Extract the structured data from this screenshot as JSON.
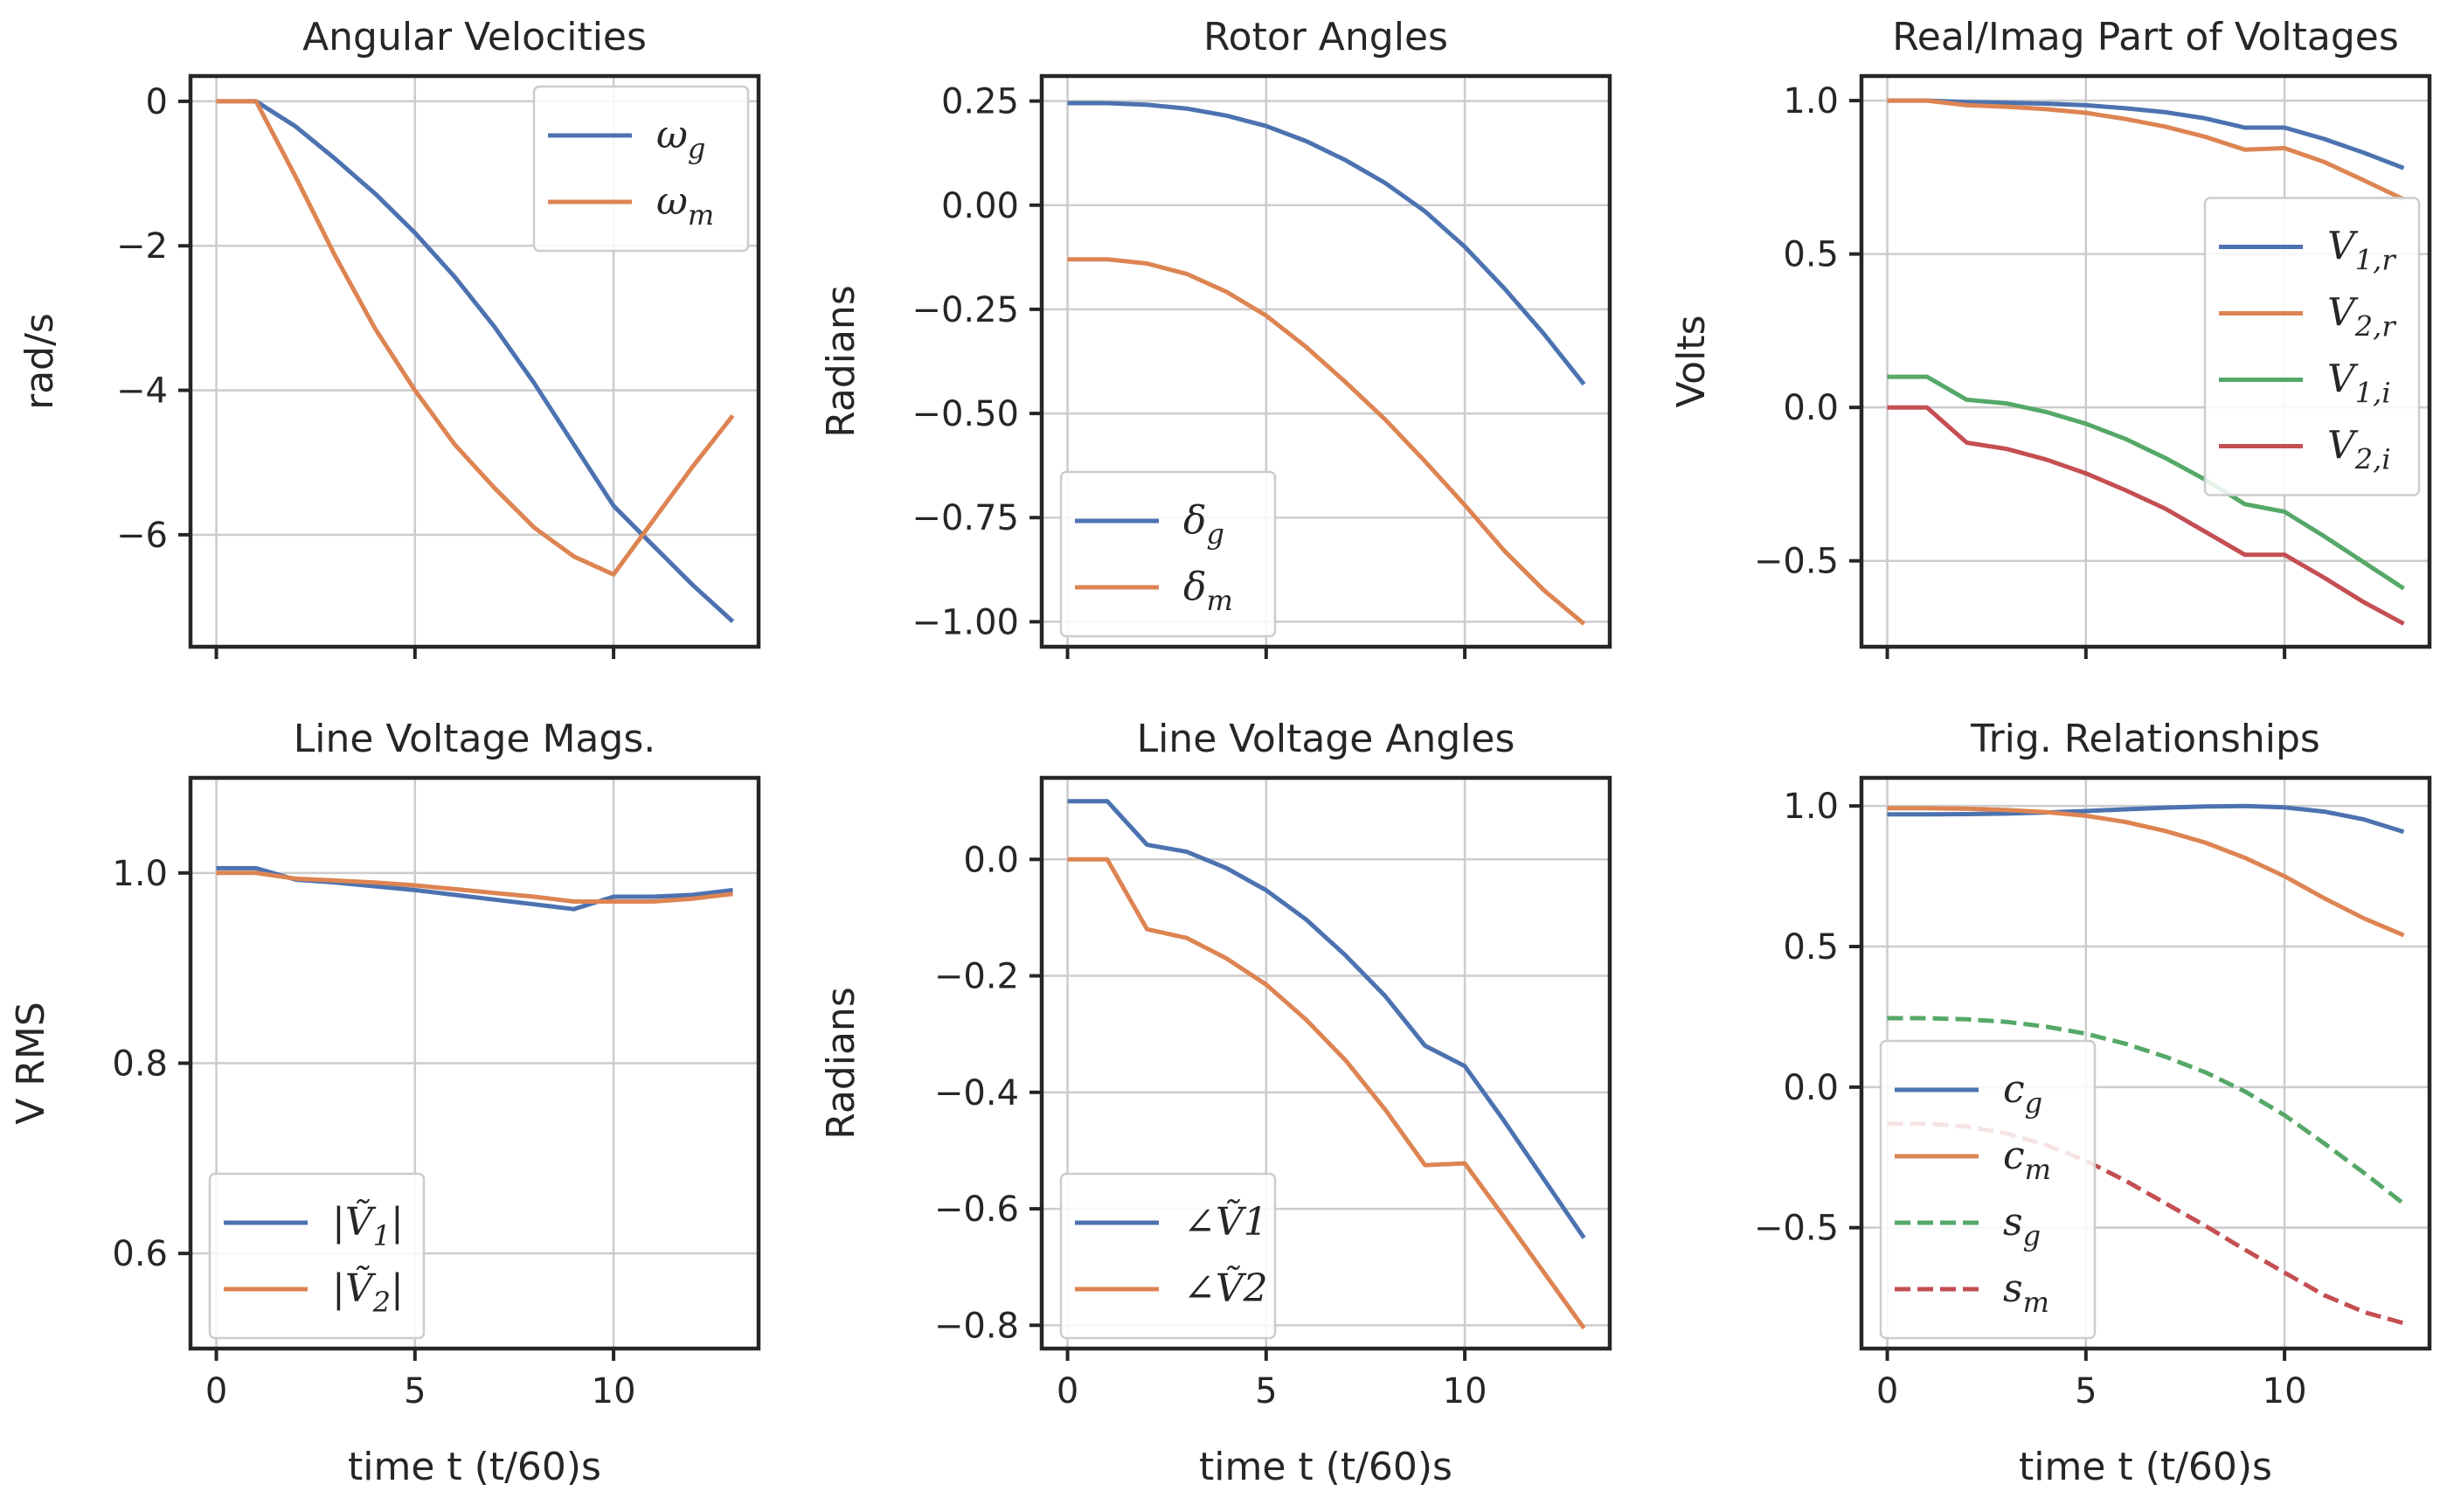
{
  "chart_data": [
    {
      "type": "line",
      "title": "Angular Velocities",
      "xlabel": "",
      "ylabel": "rad/s",
      "xlim": [
        -0.65,
        13.65
      ],
      "ylim": [
        -7.55,
        0.35
      ],
      "xticks": [
        0,
        5,
        10
      ],
      "xticklabels": [
        "",
        "",
        ""
      ],
      "yticks": [
        0,
        -2,
        -4,
        -6
      ],
      "yticklabels": [
        "0",
        "−2",
        "−4",
        "−6"
      ],
      "legend": "top-right",
      "series": [
        {
          "name": "ωg",
          "color": "#4c72b0",
          "dash": "solid",
          "x": [
            0,
            1,
            2,
            3,
            4,
            5,
            6,
            7,
            8,
            9,
            10,
            11,
            12,
            13
          ],
          "y": [
            0,
            0,
            -0.35,
            -0.8,
            -1.28,
            -1.82,
            -2.43,
            -3.12,
            -3.9,
            -4.75,
            -5.6,
            -6.15,
            -6.7,
            -7.2
          ]
        },
        {
          "name": "ωm",
          "color": "#dd8452",
          "dash": "solid",
          "x": [
            0,
            1,
            2,
            3,
            4,
            5,
            6,
            7,
            8,
            9,
            10,
            11,
            12,
            13
          ],
          "y": [
            0,
            0,
            -1.05,
            -2.15,
            -3.15,
            -4.0,
            -4.75,
            -5.35,
            -5.9,
            -6.3,
            -6.55,
            -5.8,
            -5.05,
            -4.35
          ]
        }
      ]
    },
    {
      "type": "line",
      "title": "Rotor Angles",
      "xlabel": "",
      "ylabel": "Radians",
      "xlim": [
        -0.65,
        13.65
      ],
      "ylim": [
        -1.06,
        0.31
      ],
      "xticks": [
        0,
        5,
        10
      ],
      "xticklabels": [
        "",
        "",
        ""
      ],
      "yticks": [
        0.25,
        0.0,
        -0.25,
        -0.5,
        -0.75,
        -1.0
      ],
      "yticklabels": [
        "0.25",
        "0.00",
        "−0.25",
        "−0.50",
        "−0.75",
        "−1.00"
      ],
      "legend": "bottom-left",
      "series": [
        {
          "name": "δg",
          "color": "#4c72b0",
          "dash": "solid",
          "x": [
            0,
            1,
            2,
            3,
            4,
            5,
            6,
            7,
            8,
            9,
            10,
            11,
            12,
            13
          ],
          "y": [
            0.245,
            0.245,
            0.241,
            0.232,
            0.215,
            0.19,
            0.154,
            0.108,
            0.053,
            -0.015,
            -0.1,
            -0.2,
            -0.31,
            -0.43
          ]
        },
        {
          "name": "δm",
          "color": "#dd8452",
          "dash": "solid",
          "x": [
            0,
            1,
            2,
            3,
            4,
            5,
            6,
            7,
            8,
            9,
            10,
            11,
            12,
            13
          ],
          "y": [
            -0.13,
            -0.13,
            -0.14,
            -0.165,
            -0.208,
            -0.265,
            -0.34,
            -0.425,
            -0.515,
            -0.615,
            -0.72,
            -0.83,
            -0.925,
            -1.005
          ]
        }
      ]
    },
    {
      "type": "line",
      "title": "Real/Imag Part of Voltages",
      "xlabel": "",
      "ylabel": "Volts",
      "xlim": [
        -0.65,
        13.65
      ],
      "ylim": [
        -0.78,
        1.08
      ],
      "xticks": [
        0,
        5,
        10
      ],
      "xticklabels": [
        "",
        "",
        ""
      ],
      "yticks": [
        1.0,
        0.5,
        0.0,
        -0.5
      ],
      "yticklabels": [
        "1.0",
        "0.5",
        "0.0",
        "−0.5"
      ],
      "legend": "right",
      "series": [
        {
          "name": "V1,r",
          "color": "#4c72b0",
          "dash": "solid",
          "x": [
            0,
            1,
            2,
            3,
            4,
            5,
            6,
            7,
            8,
            9,
            10,
            11,
            12,
            13
          ],
          "y": [
            1.0,
            1.0,
            0.995,
            0.993,
            0.99,
            0.985,
            0.975,
            0.962,
            0.942,
            0.912,
            0.912,
            0.875,
            0.83,
            0.78
          ]
        },
        {
          "name": "V2,r",
          "color": "#dd8452",
          "dash": "solid",
          "x": [
            0,
            1,
            2,
            3,
            4,
            5,
            6,
            7,
            8,
            9,
            10,
            11,
            12,
            13
          ],
          "y": [
            1.0,
            1.0,
            0.985,
            0.98,
            0.972,
            0.96,
            0.94,
            0.915,
            0.882,
            0.84,
            0.845,
            0.8,
            0.74,
            0.678
          ]
        },
        {
          "name": "V1,i",
          "color": "#55a868",
          "dash": "solid",
          "x": [
            0,
            1,
            2,
            3,
            4,
            5,
            6,
            7,
            8,
            9,
            10,
            11,
            12,
            13
          ],
          "y": [
            0.1,
            0.1,
            0.025,
            0.013,
            -0.015,
            -0.053,
            -0.103,
            -0.165,
            -0.235,
            -0.315,
            -0.34,
            -0.42,
            -0.505,
            -0.59
          ]
        },
        {
          "name": "V2,i",
          "color": "#c44e52",
          "dash": "solid",
          "x": [
            0,
            1,
            2,
            3,
            4,
            5,
            6,
            7,
            8,
            9,
            10,
            11,
            12,
            13
          ],
          "y": [
            0,
            0,
            -0.115,
            -0.135,
            -0.17,
            -0.215,
            -0.27,
            -0.33,
            -0.405,
            -0.48,
            -0.48,
            -0.555,
            -0.635,
            -0.705
          ]
        }
      ]
    },
    {
      "type": "line",
      "title": "Line Voltage Mags.",
      "xlabel": "time t (t/60)s",
      "ylabel": "V RMS",
      "xlim": [
        -0.65,
        13.65
      ],
      "ylim": [
        0.5,
        1.1
      ],
      "xticks": [
        0,
        5,
        10
      ],
      "xticklabels": [
        "0",
        "5",
        "10"
      ],
      "yticks": [
        1.0,
        0.8,
        0.6
      ],
      "yticklabels": [
        "1.0",
        "0.8",
        "0.6"
      ],
      "legend": "bottom-left",
      "series": [
        {
          "name": "|Ṽ1|",
          "color": "#4c72b0",
          "dash": "solid",
          "x": [
            0,
            1,
            2,
            3,
            4,
            5,
            6,
            7,
            8,
            9,
            10,
            11,
            12,
            13
          ],
          "y": [
            1.005,
            1.005,
            0.993,
            0.99,
            0.986,
            0.982,
            0.977,
            0.972,
            0.967,
            0.962,
            0.975,
            0.975,
            0.977,
            0.982
          ]
        },
        {
          "name": "|Ṽ2|",
          "color": "#dd8452",
          "dash": "solid",
          "x": [
            0,
            1,
            2,
            3,
            4,
            5,
            6,
            7,
            8,
            9,
            10,
            11,
            12,
            13
          ],
          "y": [
            1.0,
            1.0,
            0.994,
            0.992,
            0.99,
            0.987,
            0.983,
            0.979,
            0.975,
            0.97,
            0.97,
            0.97,
            0.973,
            0.978
          ]
        }
      ]
    },
    {
      "type": "line",
      "title": "Line Voltage Angles",
      "xlabel": "time t (t/60)s",
      "ylabel": "Radians",
      "xlim": [
        -0.65,
        13.65
      ],
      "ylim": [
        -0.84,
        0.14
      ],
      "xticks": [
        0,
        5,
        10
      ],
      "xticklabels": [
        "0",
        "5",
        "10"
      ],
      "yticks": [
        0.0,
        -0.2,
        -0.4,
        -0.6,
        -0.8
      ],
      "yticklabels": [
        "0.0",
        "−0.2",
        "−0.4",
        "−0.6",
        "−0.8"
      ],
      "legend": "bottom-left",
      "series": [
        {
          "name": "∠Ṽ1",
          "color": "#4c72b0",
          "dash": "solid",
          "x": [
            0,
            1,
            2,
            3,
            4,
            5,
            6,
            7,
            8,
            9,
            10,
            11,
            12,
            13
          ],
          "y": [
            0.1,
            0.1,
            0.025,
            0.013,
            -0.015,
            -0.053,
            -0.103,
            -0.165,
            -0.235,
            -0.32,
            -0.355,
            -0.45,
            -0.55,
            -0.65
          ]
        },
        {
          "name": "∠Ṽ2",
          "color": "#dd8452",
          "dash": "solid",
          "x": [
            0,
            1,
            2,
            3,
            4,
            5,
            6,
            7,
            8,
            9,
            10,
            11,
            12,
            13
          ],
          "y": [
            0,
            0,
            -0.12,
            -0.135,
            -0.17,
            -0.215,
            -0.275,
            -0.345,
            -0.43,
            -0.525,
            -0.522,
            -0.615,
            -0.71,
            -0.805
          ]
        }
      ]
    },
    {
      "type": "line",
      "title": "Trig. Relationships",
      "xlabel": "time t (t/60)s",
      "ylabel": "",
      "xlim": [
        -0.65,
        13.65
      ],
      "ylim": [
        -0.93,
        1.1
      ],
      "xticks": [
        0,
        5,
        10
      ],
      "xticklabels": [
        "0",
        "5",
        "10"
      ],
      "yticks": [
        1.0,
        0.5,
        0.0,
        -0.5
      ],
      "yticklabels": [
        "1.0",
        "0.5",
        "0.0",
        "−0.5"
      ],
      "legend": "bottom-left",
      "series": [
        {
          "name": "cg",
          "color": "#4c72b0",
          "dash": "solid",
          "x": [
            0,
            1,
            2,
            3,
            4,
            5,
            6,
            7,
            8,
            9,
            10,
            11,
            12,
            13
          ],
          "y": [
            0.97,
            0.97,
            0.971,
            0.973,
            0.977,
            0.982,
            0.988,
            0.994,
            0.998,
            1.0,
            0.995,
            0.98,
            0.952,
            0.908
          ]
        },
        {
          "name": "cm",
          "color": "#dd8452",
          "dash": "solid",
          "x": [
            0,
            1,
            2,
            3,
            4,
            5,
            6,
            7,
            8,
            9,
            10,
            11,
            12,
            13
          ],
          "y": [
            0.992,
            0.992,
            0.99,
            0.986,
            0.978,
            0.965,
            0.943,
            0.911,
            0.87,
            0.816,
            0.75,
            0.672,
            0.6,
            0.54
          ]
        },
        {
          "name": "sg",
          "color": "#55a868",
          "dash": "dashed",
          "x": [
            0,
            1,
            2,
            3,
            4,
            5,
            6,
            7,
            8,
            9,
            10,
            11,
            12,
            13
          ],
          "y": [
            0.245,
            0.245,
            0.241,
            0.232,
            0.215,
            0.19,
            0.154,
            0.108,
            0.053,
            -0.015,
            -0.1,
            -0.2,
            -0.305,
            -0.415
          ]
        },
        {
          "name": "sm",
          "color": "#c44e52",
          "dash": "dashed",
          "x": [
            0,
            1,
            2,
            3,
            4,
            5,
            6,
            7,
            8,
            9,
            10,
            11,
            12,
            13
          ],
          "y": [
            -0.13,
            -0.13,
            -0.14,
            -0.165,
            -0.206,
            -0.262,
            -0.333,
            -0.413,
            -0.493,
            -0.578,
            -0.66,
            -0.74,
            -0.8,
            -0.84
          ]
        }
      ]
    }
  ]
}
